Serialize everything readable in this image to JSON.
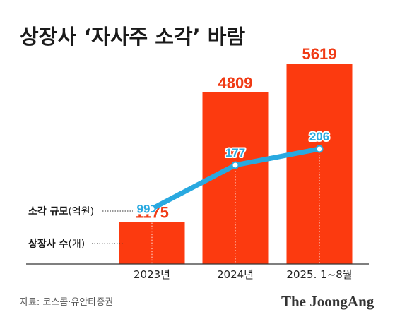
{
  "title": "상장사 ‘자사주 소각’ 바람",
  "legend": {
    "buyback_label": "소각 규모",
    "buyback_unit": "(억원)",
    "companies_label": "상장사 수",
    "companies_unit": "(개)"
  },
  "source": "자료: 코스콤·유안타증권",
  "brand": "The JoongAng",
  "colors": {
    "bar": "#fc3a0f",
    "bar_label": "#f03a14",
    "line": "#29a9e0",
    "axis": "#333333"
  },
  "chart_data": {
    "type": "bar",
    "title": "상장사 ‘자사주 소각’ 바람",
    "categories": [
      "2023년",
      "2024년",
      "2025. 1~8월"
    ],
    "series": [
      {
        "name": "소각 규모(억원)",
        "type": "bar",
        "values": [
          1175,
          4809,
          5619
        ],
        "labels": [
          "1175",
          "4809",
          "5619"
        ]
      },
      {
        "name": "상장사 수(개)",
        "type": "line",
        "values": [
          99,
          177,
          206
        ],
        "labels": [
          "99",
          "177",
          "206"
        ]
      }
    ],
    "grid": false,
    "legend": "left"
  }
}
